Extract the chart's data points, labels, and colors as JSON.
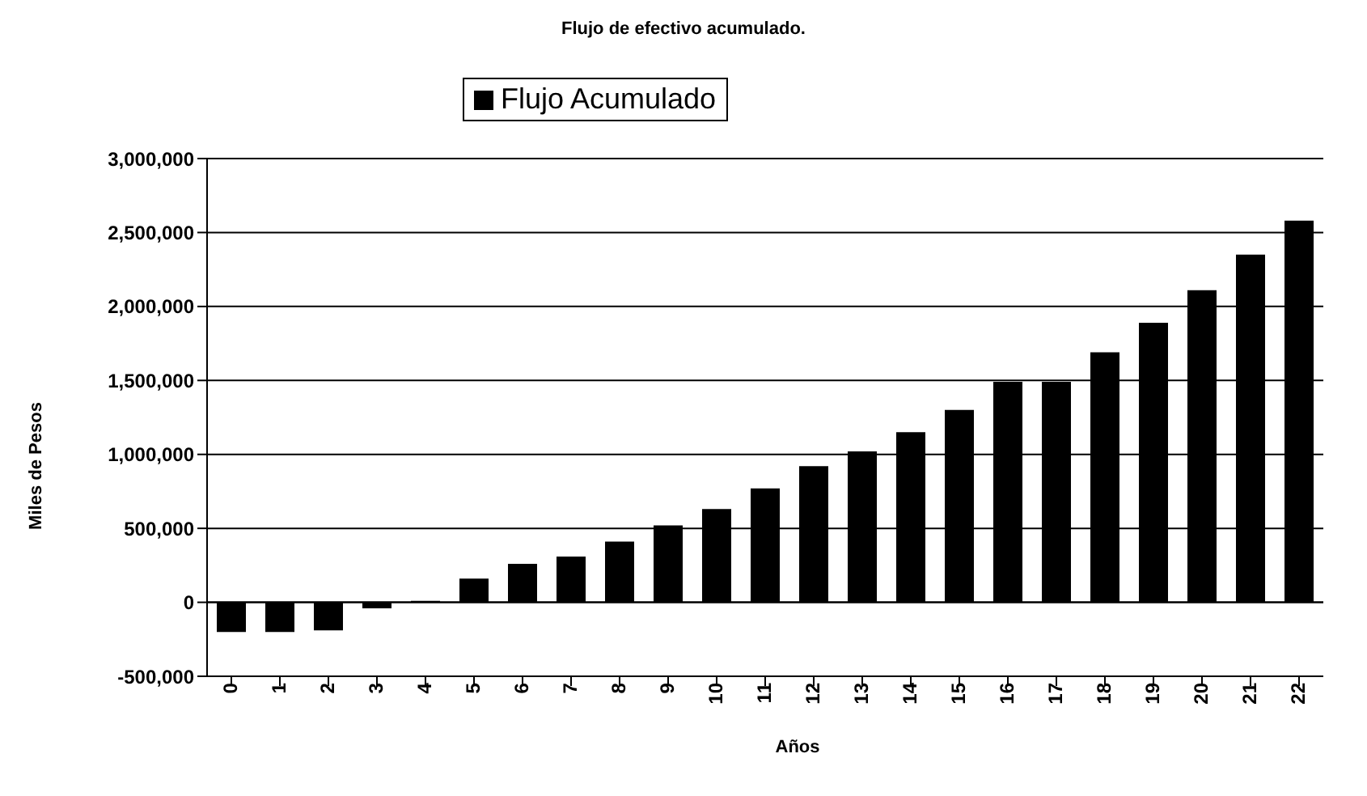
{
  "chart_data": {
    "type": "bar",
    "title": "Flujo de efectivo acumulado.",
    "xlabel": "Años",
    "ylabel": "Miles de Pesos",
    "categories": [
      "0",
      "1",
      "2",
      "3",
      "4",
      "5",
      "6",
      "7",
      "8",
      "9",
      "10",
      "11",
      "12",
      "13",
      "14",
      "15",
      "16",
      "17",
      "18",
      "19",
      "20",
      "21",
      "22"
    ],
    "series": [
      {
        "name": "Flujo Acumulado",
        "color": "#000000",
        "values": [
          -200000,
          -200000,
          -190000,
          -40000,
          10000,
          160000,
          260000,
          310000,
          410000,
          520000,
          630000,
          770000,
          920000,
          1020000,
          1150000,
          1300000,
          1490000,
          1490000,
          1690000,
          1890000,
          2110000,
          2350000,
          2580000
        ]
      }
    ],
    "ylim": [
      -500000,
      3000000
    ],
    "yticks": [
      {
        "value": -500000,
        "label": "-500,000"
      },
      0,
      {
        "value": 500000,
        "label": "500,000"
      },
      {
        "value": 1000000,
        "label": "1,000,000"
      },
      {
        "value": 1500000,
        "label": "1,500,000"
      },
      {
        "value": 2000000,
        "label": "2,000,000"
      },
      {
        "value": 2500000,
        "label": "2,500,000"
      },
      {
        "value": 3000000,
        "label": "3,000,000"
      }
    ],
    "grid": "y",
    "legend": "top"
  }
}
